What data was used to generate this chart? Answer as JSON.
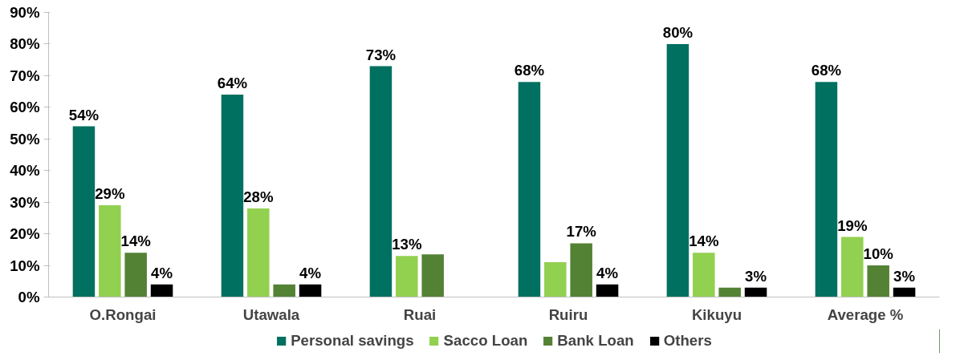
{
  "chart_data": {
    "type": "bar",
    "categories": [
      "O.Rongai",
      "Utawala",
      "Ruai",
      "Ruiru",
      "Kikuyu",
      "Average %"
    ],
    "series": [
      {
        "name": "Personal savings",
        "color": "#007060",
        "values": [
          54,
          64,
          73,
          68,
          80,
          68
        ],
        "value_labels": [
          "54%",
          "64%",
          "73%",
          "68%",
          "80%",
          "68%"
        ]
      },
      {
        "name": "Sacco Loan",
        "color": "#92d050",
        "values": [
          29,
          28,
          13,
          11,
          14,
          19
        ],
        "value_labels": [
          "29%",
          "28%",
          "13%",
          null,
          "14%",
          "19%"
        ]
      },
      {
        "name": "Bank Loan",
        "color": "#548235",
        "values": [
          14,
          4,
          13.5,
          17,
          3,
          10
        ],
        "value_labels": [
          "14%",
          null,
          null,
          "17%",
          null,
          "10%"
        ]
      },
      {
        "name": "Others",
        "color": "#000000",
        "values": [
          4,
          4,
          null,
          4,
          3,
          3
        ],
        "value_labels": [
          "4%",
          "4%",
          null,
          "4%",
          "3%",
          "3%"
        ]
      }
    ],
    "ylim": [
      0,
      90
    ],
    "yticks": [
      {
        "value": 0,
        "label": "0%"
      },
      {
        "value": 10,
        "label": "10%"
      },
      {
        "value": 20,
        "label": "20%"
      },
      {
        "value": 30,
        "label": "30%"
      },
      {
        "value": 40,
        "label": "40%"
      },
      {
        "value": 50,
        "label": "50%"
      },
      {
        "value": 60,
        "label": "60%"
      },
      {
        "value": 70,
        "label": "70%"
      },
      {
        "value": 80,
        "label": "80%"
      },
      {
        "value": 90,
        "label": "90%"
      }
    ],
    "grid": false,
    "legend": "bottom"
  }
}
